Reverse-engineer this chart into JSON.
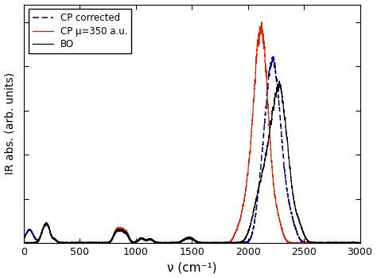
{
  "title": "",
  "xlabel": "ν (cm⁻¹)",
  "ylabel": "IR abs. (arb. units)",
  "xlim": [
    0,
    3000
  ],
  "ylim": [
    0,
    1.08
  ],
  "legend": {
    "BO": {
      "color": "#000000",
      "linestyle": "-",
      "label": "BO"
    },
    "CP": {
      "color": "#dd2200",
      "linestyle": "-",
      "label": "CP μ=350 a.u."
    },
    "CP_corr": {
      "color": "#00008b",
      "linestyle": "--",
      "label": "CP corrected"
    }
  },
  "xticks": [
    0,
    500,
    1000,
    1500,
    2000,
    2500,
    3000
  ],
  "xtick_labels": [
    "0",
    "500",
    "1000",
    "1500",
    "2000",
    "2500",
    "3000"
  ],
  "yticks_count": 5,
  "background_color": "#ffffff",
  "linewidth": 0.9
}
